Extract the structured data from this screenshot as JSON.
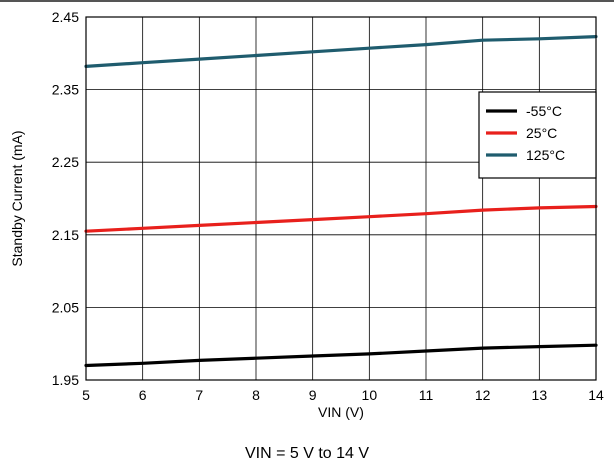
{
  "chart_data": {
    "type": "line",
    "title": "",
    "xlabel": "VIN (V)",
    "ylabel": "Standby Current (mA)",
    "xlim": [
      5,
      14
    ],
    "ylim": [
      1.95,
      2.45
    ],
    "x_ticks": [
      5,
      6,
      7,
      8,
      9,
      10,
      11,
      12,
      13,
      14
    ],
    "y_ticks": [
      "1.95",
      "2.05",
      "2.15",
      "2.25",
      "2.35",
      "2.45"
    ],
    "grid": true,
    "legend_position": "right",
    "x": [
      5,
      6,
      7,
      8,
      9,
      10,
      11,
      12,
      13,
      14
    ],
    "series": [
      {
        "name": "-55°C",
        "color": "#000000",
        "values": [
          1.97,
          1.973,
          1.977,
          1.98,
          1.983,
          1.986,
          1.99,
          1.994,
          1.996,
          1.998
        ]
      },
      {
        "name": "25°C",
        "color": "#e8201c",
        "values": [
          2.155,
          2.159,
          2.163,
          2.167,
          2.171,
          2.175,
          2.179,
          2.184,
          2.187,
          2.189
        ]
      },
      {
        "name": "125°C",
        "color": "#1f5c6e",
        "values": [
          2.382,
          2.387,
          2.392,
          2.397,
          2.402,
          2.407,
          2.412,
          2.418,
          2.42,
          2.423
        ]
      }
    ]
  },
  "caption": "VIN = 5 V to 14 V"
}
